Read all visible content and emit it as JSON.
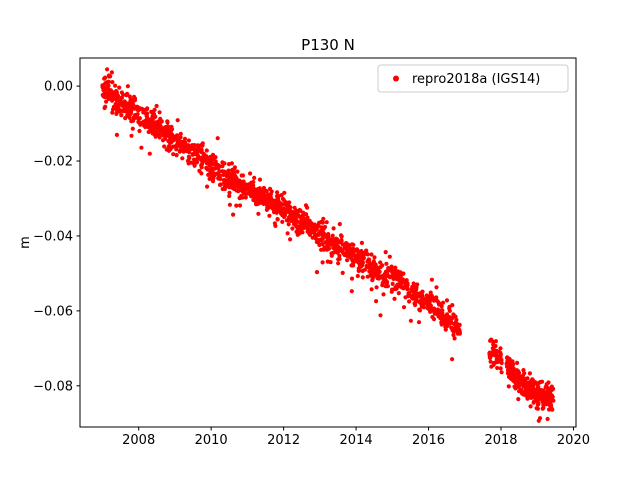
{
  "figure": {
    "background_color": "#ffffff"
  },
  "chart_data": {
    "type": "scatter",
    "title": "P130 N",
    "xlabel": "",
    "ylabel": "m",
    "xlim": [
      2006.38,
      2020.07
    ],
    "ylim": [
      -0.091,
      0.0075
    ],
    "xticks": [
      2008,
      2010,
      2012,
      2014,
      2016,
      2018,
      2020
    ],
    "yticks": [
      0.0,
      -0.02,
      -0.04,
      -0.06,
      -0.08
    ],
    "grid": false,
    "legend_position": "upper right",
    "legend_frame_color": "#cccccc",
    "series": [
      {
        "name": "repro2018a (IGS14)",
        "color": "#ff0000",
        "marker": "circle",
        "marker_px": 2.1,
        "seed": 20180713,
        "noise_std_m": 0.0018,
        "outlier_fraction": 0.05,
        "outlier_std_m": 0.0035,
        "outlier_bias_m": -0.0015,
        "trend_anchors": [
          [
            2007.0,
            -0.0005
          ],
          [
            2007.5,
            -0.004
          ],
          [
            2008.0,
            -0.0075
          ],
          [
            2008.5,
            -0.011
          ],
          [
            2009.0,
            -0.0145
          ],
          [
            2009.5,
            -0.018
          ],
          [
            2010.0,
            -0.021
          ],
          [
            2010.5,
            -0.0245
          ],
          [
            2011.0,
            -0.0275
          ],
          [
            2011.5,
            -0.03
          ],
          [
            2012.0,
            -0.033
          ],
          [
            2012.5,
            -0.0365
          ],
          [
            2013.0,
            -0.039
          ],
          [
            2013.5,
            -0.043
          ],
          [
            2014.0,
            -0.046
          ],
          [
            2014.5,
            -0.049
          ],
          [
            2015.0,
            -0.051
          ],
          [
            2015.5,
            -0.0545
          ],
          [
            2016.0,
            -0.058
          ],
          [
            2016.5,
            -0.062
          ],
          [
            2016.87,
            -0.0645
          ],
          [
            2017.7,
            -0.0705
          ],
          [
            2018.0,
            -0.0725
          ],
          [
            2018.5,
            -0.079
          ],
          [
            2019.0,
            -0.082
          ],
          [
            2019.45,
            -0.0835
          ]
        ],
        "segments": [
          {
            "from": 2007.0,
            "to": 2016.87,
            "count": 1500
          },
          {
            "from": 2017.68,
            "to": 2018.02,
            "count": 55
          },
          {
            "from": 2018.15,
            "to": 2019.45,
            "count": 300
          }
        ]
      }
    ]
  }
}
